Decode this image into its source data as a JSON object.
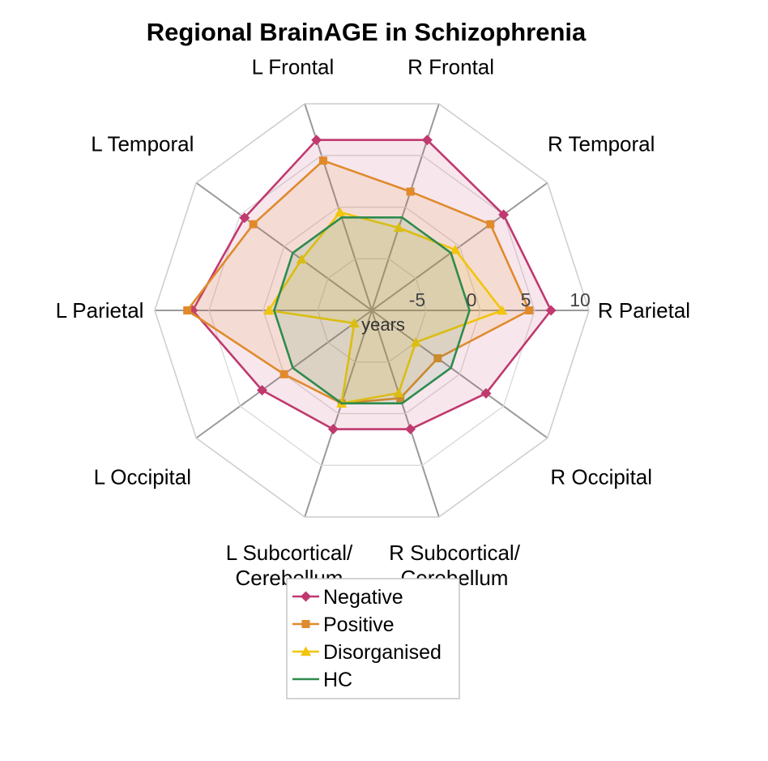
{
  "chart_data": {
    "type": "radar",
    "title": "Regional BrainAGE in Schizophrenia",
    "categories": [
      "R Parietal",
      "R Temporal",
      "R Frontal",
      "L Frontal",
      "L Temporal",
      "L Parietal",
      "L Occipital",
      [
        "L Subcortical/",
        "Cerebellum"
      ],
      [
        "R Subcortical/",
        "Cerebellum"
      ],
      "R Occipital"
    ],
    "radial_axis": {
      "min": -10,
      "max": 10,
      "ticks": [
        -5,
        0,
        5,
        10
      ],
      "tick_labels": [
        "-5",
        "0",
        "5",
        "10"
      ],
      "unit_label": "years",
      "grid": true
    },
    "series": [
      {
        "name": "Negative",
        "color": "#c0396f",
        "marker": "diamond",
        "filled": true,
        "values": [
          6.5,
          5.0,
          6.5,
          6.5,
          4.5,
          6.5,
          2.5,
          1.5,
          1.5,
          3.0
        ]
      },
      {
        "name": "Positive",
        "color": "#e08a2c",
        "marker": "square",
        "filled": true,
        "values": [
          4.5,
          3.5,
          1.5,
          4.5,
          3.5,
          7.0,
          0.0,
          -1.0,
          -1.5,
          -2.5
        ]
      },
      {
        "name": "Disorganised",
        "color": "#f2c40c",
        "marker": "triangle",
        "filled": true,
        "values": [
          2.0,
          -0.5,
          -2.0,
          -0.5,
          -2.0,
          -0.5,
          -8.0,
          -1.0,
          -2.0,
          -5.0
        ]
      },
      {
        "name": "HC",
        "color": "#2e8b4e",
        "marker": "none",
        "filled": true,
        "values": [
          -1.0,
          -1.0,
          -1.0,
          -1.0,
          -1.0,
          -1.0,
          -1.0,
          -1.0,
          -1.0,
          -1.0
        ]
      }
    ],
    "legend_position": "bottom-center"
  }
}
